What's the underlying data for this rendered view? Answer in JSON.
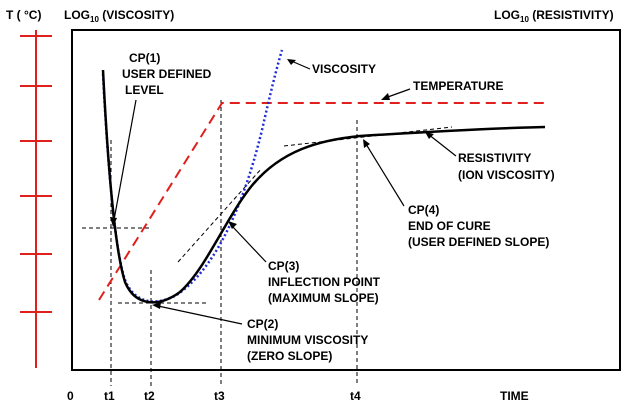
{
  "header": {
    "temp_label": "T ( °C)",
    "viscosity_prefix": "LOG",
    "viscosity_sub": "10",
    "viscosity_suffix": " (VISCOSITY)",
    "resistivity_prefix": "LOG",
    "resistivity_sub": "10",
    "resistivity_suffix": " (RESISTIVITY)"
  },
  "axis": {
    "origin": "0",
    "time": "TIME",
    "t1": "t1",
    "t2": "t2",
    "t3": "t3",
    "t4": "t4"
  },
  "curves": {
    "viscosity": "VISCOSITY",
    "temperature": "TEMPERATURE",
    "resistivity_1": "RESISTIVITY",
    "resistivity_2": "(ION VISCOSITY)"
  },
  "callouts": {
    "cp1": [
      "CP(1)",
      "USER DEFINED",
      "LEVEL"
    ],
    "cp2": [
      "CP(2)",
      "MINIMUM VISCOSITY",
      "(ZERO SLOPE)"
    ],
    "cp3": [
      "CP(3)",
      "INFLECTION POINT",
      "(MAXIMUM SLOPE)"
    ],
    "cp4": [
      "CP(4)",
      "END OF CURE",
      "(USER DEFINED SLOPE)"
    ]
  },
  "colors": {
    "temperature_scale": "#e0201c",
    "temperature_curve": "#e0201c",
    "viscosity_curve": "#1f2bd6",
    "resistivity_curve": "#000000"
  }
}
